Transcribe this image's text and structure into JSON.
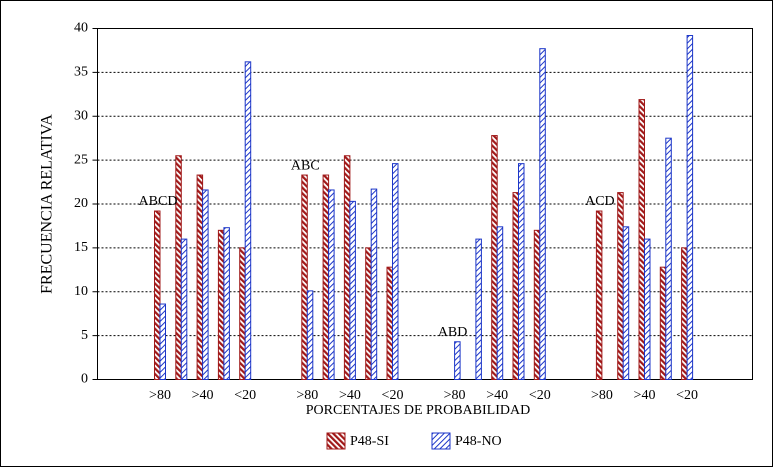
{
  "chart_data": {
    "type": "bar",
    "xlabel": "PORCENTAJES DE PROBABILIDAD",
    "ylabel": "FRECUENCIA RELATIVA",
    "groups": [
      "ABCD",
      "ABC",
      "ABD",
      "ACD"
    ],
    "categories": [
      ">80",
      null,
      ">40",
      null,
      "<20",
      ">80",
      null,
      ">40",
      null,
      "<20",
      ">80",
      null,
      ">40",
      null,
      "<20",
      ">80",
      null,
      ">40",
      null,
      "<20"
    ],
    "series": [
      {
        "name": "P48-SI",
        "color": "#a01818",
        "values": [
          19.2,
          25.5,
          23.3,
          17,
          15,
          23.3,
          23.3,
          25.5,
          15,
          12.8,
          0,
          0,
          27.8,
          21.3,
          17,
          19.2,
          21.3,
          31.9,
          12.8,
          15
        ]
      },
      {
        "name": "P48-NO",
        "color": "#1c36c8",
        "values": [
          8.6,
          16,
          21.6,
          17.3,
          36.2,
          10.1,
          21.6,
          20.3,
          21.7,
          24.6,
          4.3,
          16,
          17.4,
          24.6,
          37.7,
          0,
          17.4,
          16,
          27.5,
          39.2
        ]
      }
    ],
    "ylim": [
      0,
      40
    ],
    "yticks": [
      0,
      5,
      10,
      15,
      20,
      25,
      30,
      35,
      40
    ],
    "grid": true
  }
}
